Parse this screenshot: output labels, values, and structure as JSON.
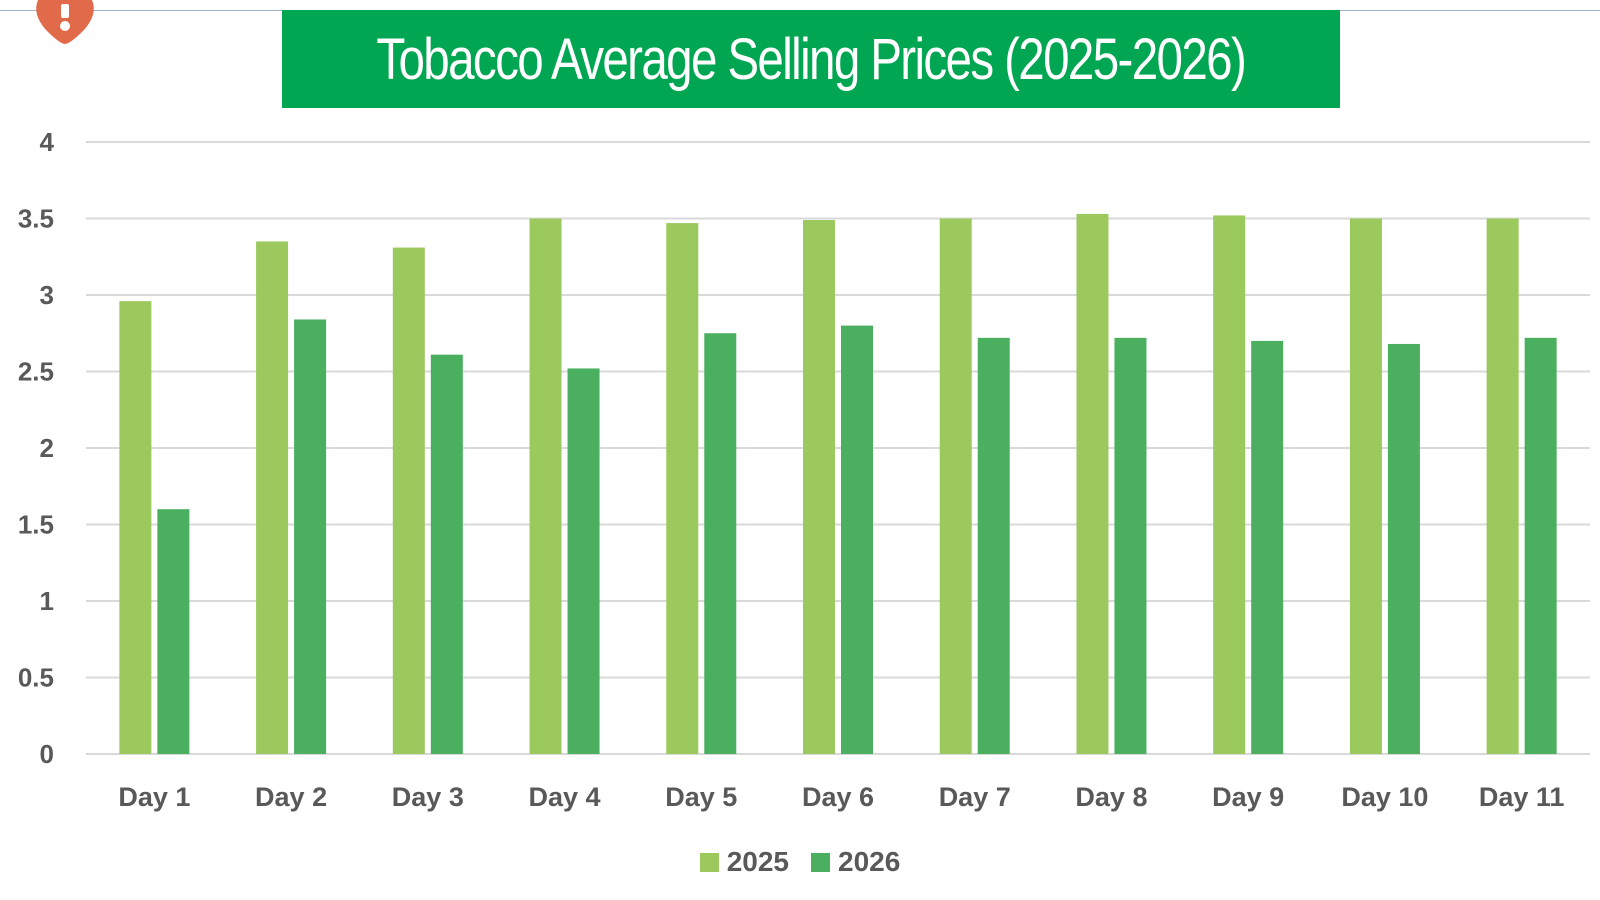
{
  "title": "Tobacco Average Selling Prices (2025-2026)",
  "colors": {
    "banner": "#00a651",
    "series_2025": "#9cc95e",
    "series_2026": "#4aaf5f",
    "gridline": "#d9d9d9",
    "axis_text": "#595959",
    "corner_icon": "#e06a4a"
  },
  "chart_data": {
    "type": "bar",
    "title": "Tobacco Average Selling Prices (2025-2026)",
    "categories": [
      "Day 1",
      "Day 2",
      "Day 3",
      "Day 4",
      "Day 5",
      "Day 6",
      "Day 7",
      "Day 8",
      "Day 9",
      "Day 10",
      "Day 11"
    ],
    "series": [
      {
        "name": "2025",
        "values": [
          2.96,
          3.35,
          3.31,
          3.5,
          3.47,
          3.49,
          3.5,
          3.53,
          3.52,
          3.5,
          3.5
        ]
      },
      {
        "name": "2026",
        "values": [
          1.6,
          2.84,
          2.61,
          2.52,
          2.75,
          2.8,
          2.72,
          2.72,
          2.7,
          2.68,
          2.72
        ]
      }
    ],
    "yticks": [
      "0",
      "0.5",
      "1",
      "1.5",
      "2",
      "2.5",
      "3",
      "3.5",
      "4"
    ],
    "ylim": [
      0,
      4
    ],
    "xlabel": "",
    "ylabel": "",
    "grid": true,
    "legend_position": "bottom"
  }
}
